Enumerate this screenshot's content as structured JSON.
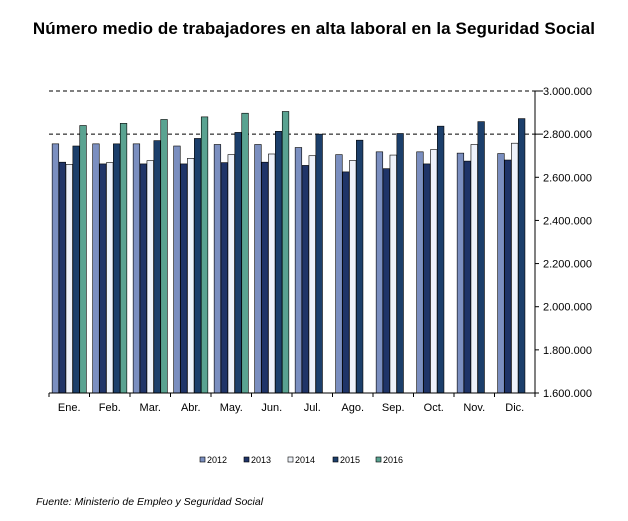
{
  "title": "Número medio de trabajadores en alta laboral en la Seguridad Social",
  "source": "Fuente: Ministerio de Empleo y Seguridad Social",
  "chart_data": {
    "type": "bar",
    "title": "Número medio de trabajadores en alta laboral en la Seguridad Social",
    "categories": [
      "Ene.",
      "Feb.",
      "Mar.",
      "Abr.",
      "May.",
      "Jun.",
      "Jul.",
      "Ago.",
      "Sep.",
      "Oct.",
      "Nov.",
      "Dic."
    ],
    "ylim": [
      1600000,
      3000000
    ],
    "ytick_values": [
      1600000,
      1800000,
      2000000,
      2200000,
      2400000,
      2600000,
      2800000,
      3000000
    ],
    "ytick_labels": [
      "1.600.000",
      "1.800.000",
      "2.000.000",
      "2.200.000",
      "2.400.000",
      "2.600.000",
      "2.800.000",
      "3.000.000"
    ],
    "grid_dashed_at": [
      2800000,
      3000000
    ],
    "legend_position": "bottom",
    "series": [
      {
        "name": "2012",
        "color": "#7b8fc0",
        "values": [
          2755000,
          2755000,
          2755000,
          2745000,
          2752000,
          2752000,
          2738000,
          2705000,
          2718000,
          2718000,
          2712000,
          2710000
        ]
      },
      {
        "name": "2013",
        "color": "#1f3468",
        "values": [
          2670000,
          2662000,
          2662000,
          2662000,
          2668000,
          2670000,
          2655000,
          2625000,
          2640000,
          2662000,
          2675000,
          2680000
        ]
      },
      {
        "name": "2014",
        "color": "#eef2fa",
        "values": [
          2660000,
          2668000,
          2677000,
          2688000,
          2705000,
          2708000,
          2700000,
          2678000,
          2703000,
          2728000,
          2752000,
          2758000
        ]
      },
      {
        "name": "2015",
        "color": "#1c3f6b",
        "values": [
          2745000,
          2755000,
          2770000,
          2780000,
          2808000,
          2813000,
          2800000,
          2772000,
          2803000,
          2837000,
          2858000,
          2872000
        ]
      },
      {
        "name": "2016",
        "color": "#5aa391",
        "values": [
          2840000,
          2850000,
          2868000,
          2880000,
          2897000,
          2905000,
          null,
          null,
          null,
          null,
          null,
          null
        ]
      }
    ]
  }
}
